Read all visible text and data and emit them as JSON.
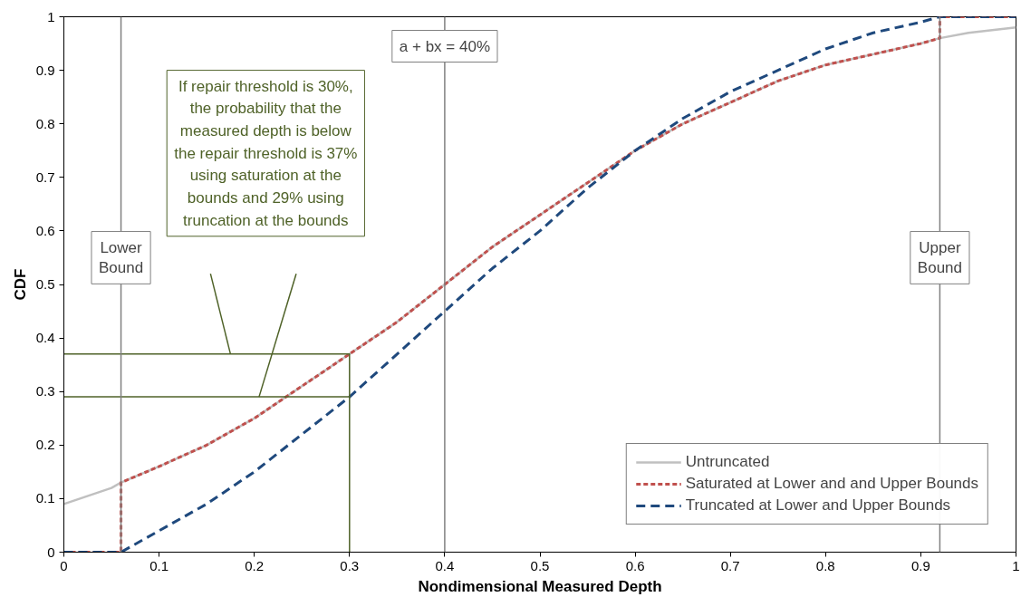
{
  "chart_data": {
    "type": "line",
    "xlabel": "Nondimensional Measured Depth",
    "ylabel": "CDF",
    "xlim": [
      0,
      1
    ],
    "ylim": [
      0,
      1
    ],
    "xticks": [
      0,
      0.1,
      0.2,
      0.3,
      0.4,
      0.5,
      0.6,
      0.7,
      0.8,
      0.9,
      1
    ],
    "yticks": [
      0,
      0.1,
      0.2,
      0.3,
      0.4,
      0.5,
      0.6,
      0.7,
      0.8,
      0.9,
      1
    ],
    "grid": false,
    "legend": "bottom right",
    "marker": "none",
    "series": [
      {
        "name": "Untruncated",
        "color": "#c0c0c0",
        "line_style": "solid",
        "x": [
          0,
          0.05,
          0.06,
          0.1,
          0.15,
          0.2,
          0.25,
          0.3,
          0.35,
          0.4,
          0.45,
          0.5,
          0.55,
          0.6,
          0.65,
          0.7,
          0.75,
          0.8,
          0.85,
          0.9,
          0.92,
          0.95,
          1
        ],
        "values": [
          0.09,
          0.12,
          0.13,
          0.16,
          0.2,
          0.25,
          0.31,
          0.37,
          0.43,
          0.5,
          0.57,
          0.63,
          0.69,
          0.75,
          0.8,
          0.84,
          0.88,
          0.91,
          0.93,
          0.95,
          0.96,
          0.97,
          0.98
        ]
      },
      {
        "name": "Saturated at Lower and and Upper Bounds",
        "color": "#c0504d",
        "line_style": "dotted",
        "x": [
          0,
          0.06,
          0.06,
          0.1,
          0.15,
          0.2,
          0.25,
          0.3,
          0.35,
          0.4,
          0.45,
          0.5,
          0.55,
          0.6,
          0.65,
          0.7,
          0.75,
          0.8,
          0.85,
          0.9,
          0.92,
          0.92,
          1
        ],
        "values": [
          0,
          0,
          0.13,
          0.16,
          0.2,
          0.25,
          0.31,
          0.37,
          0.43,
          0.5,
          0.57,
          0.63,
          0.69,
          0.75,
          0.8,
          0.84,
          0.88,
          0.91,
          0.93,
          0.95,
          0.96,
          1,
          1
        ]
      },
      {
        "name": "Truncated at Lower and Upper Bounds",
        "color": "#1f497d",
        "line_style": "dashed",
        "x": [
          0,
          0.06,
          0.1,
          0.15,
          0.2,
          0.25,
          0.3,
          0.35,
          0.4,
          0.45,
          0.5,
          0.55,
          0.6,
          0.65,
          0.7,
          0.75,
          0.8,
          0.85,
          0.9,
          0.92,
          1
        ],
        "values": [
          0,
          0,
          0.04,
          0.09,
          0.15,
          0.22,
          0.29,
          0.37,
          0.45,
          0.53,
          0.6,
          0.68,
          0.75,
          0.81,
          0.86,
          0.9,
          0.94,
          0.97,
          0.99,
          1,
          1
        ]
      },
      {
        "color": "#4f6228",
        "line_style": "solid",
        "x": [
          0,
          0.3,
          0.3
        ],
        "values": [
          0.37,
          0.37,
          0
        ]
      },
      {
        "color": "#4f6228",
        "line_style": "solid",
        "x": [
          0,
          0.3
        ],
        "values": [
          0.29,
          0.29
        ]
      },
      {
        "color": "#4f6228",
        "line_style": "solid",
        "x": [
          0.154,
          0.175
        ],
        "values": [
          0.52,
          0.37
        ]
      },
      {
        "color": "#4f6228",
        "line_style": "solid",
        "x": [
          0.244,
          0.205
        ],
        "values": [
          0.52,
          0.29
        ]
      }
    ],
    "ref_lines": [
      {
        "axis": "x",
        "value": 0.06,
        "label": "Lower\nBound",
        "color": "#808080"
      },
      {
        "axis": "x",
        "value": 0.4,
        "label": "a + bx = 40%",
        "color": "#808080"
      },
      {
        "axis": "x",
        "value": 0.92,
        "label": "Upper\nBound",
        "color": "#808080"
      }
    ],
    "annotations": [
      "If repair threshold is 30%,\nthe probability that the\nmeasured depth is below\nthe repair threshold is 37%\nusing saturation at the\nbounds and 29% using\ntruncation at the bounds"
    ]
  }
}
